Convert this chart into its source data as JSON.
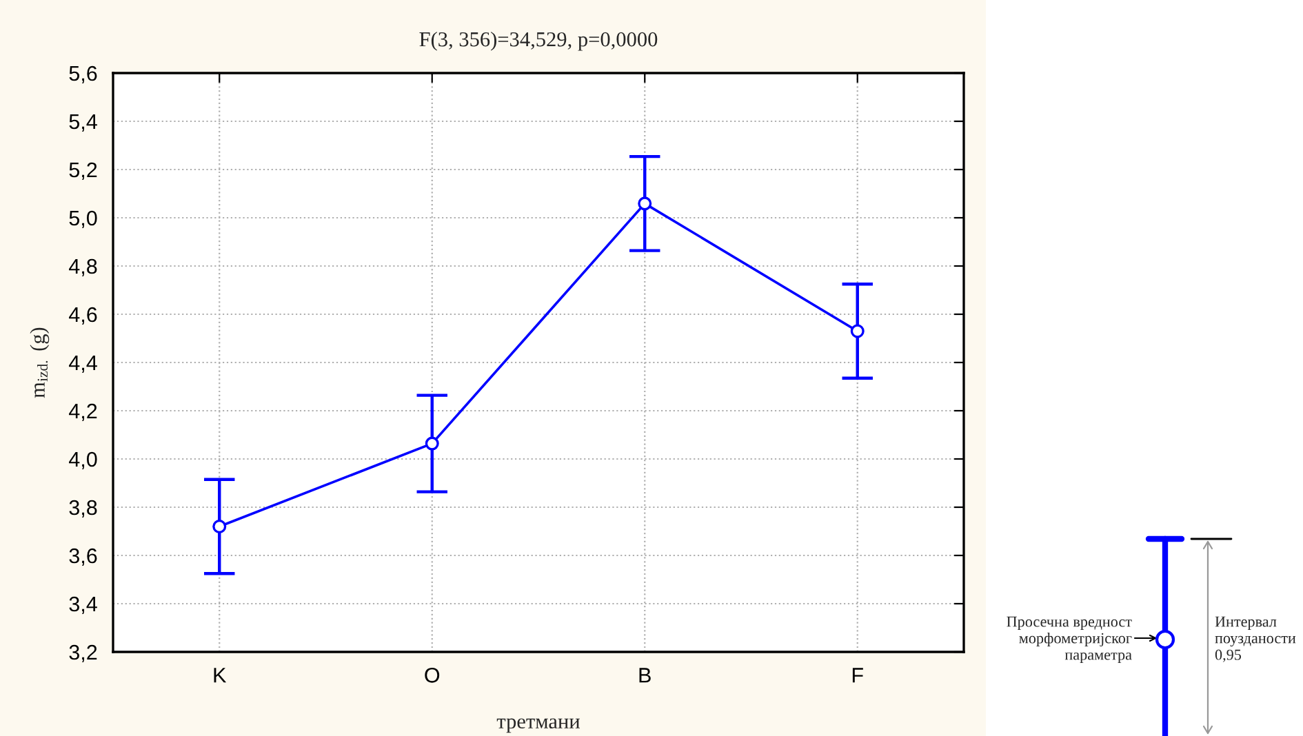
{
  "chart_data": {
    "type": "line",
    "title": "F(3, 356)=34,529, p=0,0000",
    "xlabel": "третмани",
    "ylabel": "m$_{izd.}$ (g)",
    "categories": [
      "K",
      "O",
      "B",
      "F"
    ],
    "series": [
      {
        "color": "#0000ff",
        "values": [
          3.72,
          4.064,
          5.059,
          4.53
        ],
        "errors": [
          0.195,
          0.2,
          0.195,
          0.195
        ]
      }
    ],
    "ylim": [
      3.2,
      5.6
    ],
    "yticks": [
      {
        "value": 3.2,
        "label": "3,2"
      },
      {
        "value": 3.4,
        "label": "3,4"
      },
      {
        "value": 3.6,
        "label": "3,6"
      },
      {
        "value": 3.8,
        "label": "3,8"
      },
      {
        "value": 4.0,
        "label": "4,0"
      },
      {
        "value": 4.2,
        "label": "4,2"
      },
      {
        "value": 4.4,
        "label": "4,4"
      },
      {
        "value": 4.6,
        "label": "4,6"
      },
      {
        "value": 4.8,
        "label": "4,8"
      },
      {
        "value": 5.0,
        "label": "5,0"
      },
      {
        "value": 5.2,
        "label": "5,2"
      },
      {
        "value": 5.4,
        "label": "5,4"
      },
      {
        "value": 5.6,
        "label": "5,6"
      }
    ],
    "grid": true,
    "marker": "circle",
    "line_style": "solid",
    "annotations": [
      "Просечна вредност\nморфометријског\nпараметра",
      "Интервал\nпоузданости\n0,95"
    ]
  }
}
